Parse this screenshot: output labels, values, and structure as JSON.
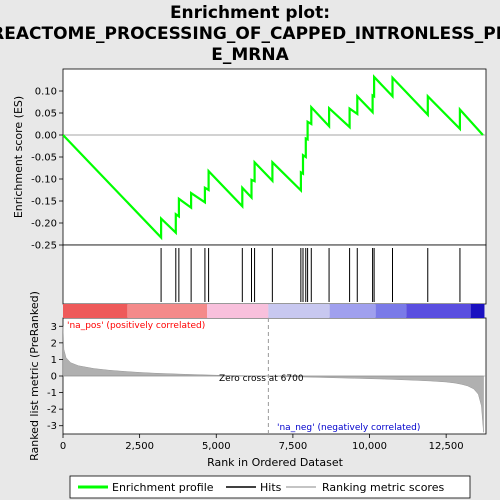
{
  "title_line1": "Enrichment plot:",
  "title_line2": "REACTOME_PROCESSING_OF_CAPPED_INTRONLESS_PR",
  "title_line3": "E_MRNA",
  "colors": {
    "enrichment_line": "#00ff00",
    "hits": "#000000",
    "metric": "#b0b0b0",
    "pos_label": "#ff0000",
    "neg_label": "#0000cc",
    "zero_line": "#888888"
  },
  "chart_data": {
    "type": "line",
    "xlabel": "Rank in Ordered Dataset",
    "xlim": [
      0,
      13800
    ],
    "x_ticks": [
      0,
      2500,
      5000,
      7500,
      10000,
      12500
    ],
    "x_tick_labels": [
      "0",
      "2,500",
      "5,000",
      "7,500",
      "10,000",
      "12,500"
    ],
    "es_panel": {
      "ylabel": "Enrichment score (ES)",
      "ylim": [
        -0.25,
        0.15
      ],
      "y_ticks": [
        -0.25,
        -0.2,
        -0.15,
        -0.1,
        -0.05,
        0.0,
        0.05,
        0.1
      ],
      "y_tick_labels": [
        "-0.25",
        "-0.20",
        "-0.15",
        "-0.10",
        "-0.05",
        "0.00",
        "0.05",
        "0.10"
      ],
      "series": [
        {
          "name": "Enrichment profile",
          "x": [
            0,
            3200,
            3200,
            3680,
            3680,
            3780,
            3780,
            4180,
            4180,
            4630,
            4630,
            4750,
            4750,
            5850,
            5850,
            6150,
            6150,
            6250,
            6250,
            6830,
            6830,
            7760,
            7760,
            7830,
            7830,
            7920,
            7920,
            7980,
            7980,
            8100,
            8100,
            8680,
            8680,
            9350,
            9350,
            9600,
            9600,
            10100,
            10100,
            10150,
            10150,
            10750,
            10750,
            11900,
            11900,
            12950,
            12950,
            13700
          ],
          "y": [
            0.0,
            -0.233,
            -0.19,
            -0.222,
            -0.18,
            -0.185,
            -0.145,
            -0.165,
            -0.132,
            -0.153,
            -0.12,
            -0.125,
            -0.082,
            -0.162,
            -0.12,
            -0.142,
            -0.102,
            -0.105,
            -0.062,
            -0.104,
            -0.062,
            -0.126,
            -0.085,
            -0.088,
            -0.046,
            -0.05,
            -0.008,
            -0.01,
            0.03,
            0.025,
            0.063,
            0.02,
            0.061,
            0.018,
            0.06,
            0.048,
            0.088,
            0.052,
            0.09,
            0.088,
            0.132,
            0.088,
            0.13,
            0.046,
            0.088,
            0.014,
            0.058,
            0.0
          ]
        }
      ]
    },
    "hits": [
      3200,
      3680,
      3780,
      4180,
      4630,
      4750,
      5850,
      6150,
      6250,
      6830,
      7760,
      7830,
      7920,
      7980,
      8100,
      8680,
      9350,
      9600,
      10100,
      10150,
      10750,
      11900,
      12950
    ],
    "heatmap_bar": {
      "segments": [
        {
          "end": 2100,
          "color": "#ee5a5a"
        },
        {
          "end": 4700,
          "color": "#f48a8a"
        },
        {
          "end": 6700,
          "color": "#f8c0dc"
        },
        {
          "end": 8700,
          "color": "#c8c8f0"
        },
        {
          "end": 10200,
          "color": "#a0a0ee"
        },
        {
          "end": 11200,
          "color": "#7a7ae8"
        },
        {
          "end": 13300,
          "color": "#5a4ee0"
        },
        {
          "end": 13750,
          "color": "#1a10c0"
        }
      ]
    },
    "metric_panel": {
      "ylabel": "Ranked list metric (PreRanked)",
      "ylim": [
        -3.5,
        3.5
      ],
      "y_ticks": [
        -3,
        -2,
        -1,
        0,
        1,
        2,
        3
      ],
      "y_tick_labels": [
        "-3",
        "-2",
        "-1",
        "0",
        "1",
        "2",
        "3"
      ],
      "x": [
        0,
        30,
        100,
        250,
        500,
        1000,
        1500,
        2000,
        2500,
        3000,
        4000,
        5000,
        6000,
        6700,
        7500,
        8500,
        9500,
        10500,
        11500,
        12000,
        12500,
        12800,
        13000,
        13200,
        13400,
        13550,
        13650,
        13720
      ],
      "y": [
        3.0,
        1.6,
        1.1,
        0.8,
        0.62,
        0.45,
        0.35,
        0.28,
        0.22,
        0.17,
        0.1,
        0.05,
        0.02,
        0.0,
        -0.04,
        -0.09,
        -0.14,
        -0.19,
        -0.26,
        -0.3,
        -0.36,
        -0.43,
        -0.5,
        -0.6,
        -0.78,
        -1.1,
        -1.8,
        -3.4
      ]
    },
    "pos_label": "'na_pos' (positively correlated)",
    "neg_label": "'na_neg' (negatively correlated)",
    "zero_cross_label": "Zero cross at 6700",
    "zero_cross": 6700
  },
  "legend": {
    "items": [
      {
        "label": "Enrichment profile",
        "color": "#00ff00"
      },
      {
        "label": "Hits",
        "color": "#000000"
      },
      {
        "label": "Ranking metric scores",
        "color": "#b0b0b0"
      }
    ]
  }
}
